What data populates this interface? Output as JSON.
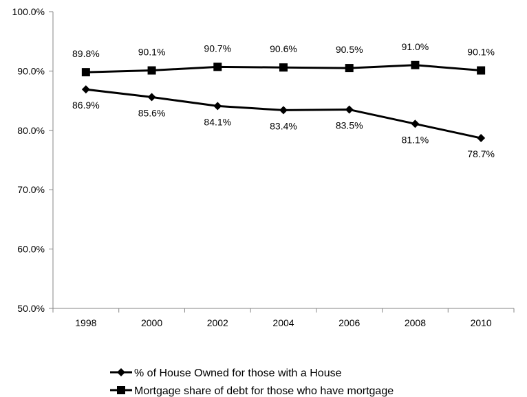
{
  "chart_data": {
    "type": "line",
    "title": "",
    "xlabel": "",
    "ylabel": "",
    "categories": [
      "1998",
      "2000",
      "2002",
      "2004",
      "2006",
      "2008",
      "2010"
    ],
    "ylim": [
      50,
      100
    ],
    "yticks": [
      "50.0%",
      "60.0%",
      "70.0%",
      "80.0%",
      "90.0%",
      "100.0%"
    ],
    "grid": false,
    "legend_position": "bottom",
    "series": [
      {
        "name": "% of House Owned for those with a House",
        "marker": "diamond",
        "color": "#000000",
        "values": [
          86.9,
          85.6,
          84.1,
          83.4,
          83.5,
          81.1,
          78.7
        ],
        "labels": [
          "86.9%",
          "85.6%",
          "84.1%",
          "83.4%",
          "83.5%",
          "81.1%",
          "78.7%"
        ],
        "label_position": "below"
      },
      {
        "name": "Mortgage share of debt for those who have mortgage",
        "marker": "square",
        "color": "#000000",
        "values": [
          89.8,
          90.1,
          90.7,
          90.6,
          90.5,
          91.0,
          90.1
        ],
        "labels": [
          "89.8%",
          "90.1%",
          "90.7%",
          "90.6%",
          "90.5%",
          "91.0%",
          "90.1%"
        ],
        "label_position": "above"
      }
    ]
  }
}
